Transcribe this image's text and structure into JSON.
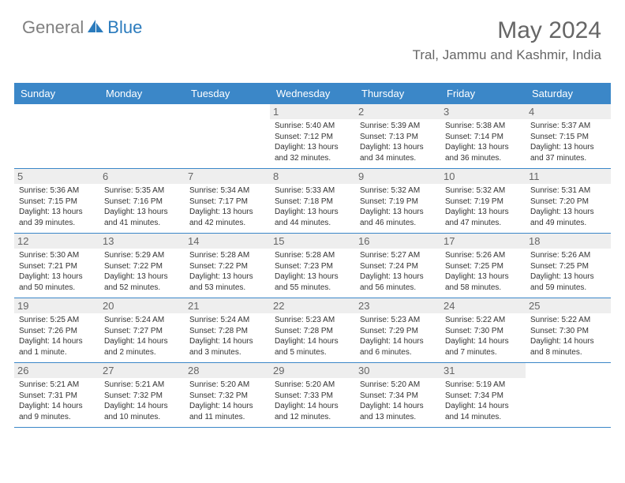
{
  "logo": {
    "text1": "General",
    "text2": "Blue"
  },
  "title": "May 2024",
  "location": "Tral, Jammu and Kashmir, India",
  "colors": {
    "header_bg": "#3b87c8",
    "header_fg": "#ffffff",
    "daynum_bg": "#eeeeee",
    "daynum_fg": "#666666",
    "border": "#3b87c8",
    "logo_gray": "#808080",
    "logo_blue": "#2b7bbd"
  },
  "day_labels": [
    "Sunday",
    "Monday",
    "Tuesday",
    "Wednesday",
    "Thursday",
    "Friday",
    "Saturday"
  ],
  "weeks": [
    [
      null,
      null,
      null,
      {
        "num": "1",
        "sunrise": "5:40 AM",
        "sunset": "7:12 PM",
        "daylight": "13 hours and 32 minutes."
      },
      {
        "num": "2",
        "sunrise": "5:39 AM",
        "sunset": "7:13 PM",
        "daylight": "13 hours and 34 minutes."
      },
      {
        "num": "3",
        "sunrise": "5:38 AM",
        "sunset": "7:14 PM",
        "daylight": "13 hours and 36 minutes."
      },
      {
        "num": "4",
        "sunrise": "5:37 AM",
        "sunset": "7:15 PM",
        "daylight": "13 hours and 37 minutes."
      }
    ],
    [
      {
        "num": "5",
        "sunrise": "5:36 AM",
        "sunset": "7:15 PM",
        "daylight": "13 hours and 39 minutes."
      },
      {
        "num": "6",
        "sunrise": "5:35 AM",
        "sunset": "7:16 PM",
        "daylight": "13 hours and 41 minutes."
      },
      {
        "num": "7",
        "sunrise": "5:34 AM",
        "sunset": "7:17 PM",
        "daylight": "13 hours and 42 minutes."
      },
      {
        "num": "8",
        "sunrise": "5:33 AM",
        "sunset": "7:18 PM",
        "daylight": "13 hours and 44 minutes."
      },
      {
        "num": "9",
        "sunrise": "5:32 AM",
        "sunset": "7:19 PM",
        "daylight": "13 hours and 46 minutes."
      },
      {
        "num": "10",
        "sunrise": "5:32 AM",
        "sunset": "7:19 PM",
        "daylight": "13 hours and 47 minutes."
      },
      {
        "num": "11",
        "sunrise": "5:31 AM",
        "sunset": "7:20 PM",
        "daylight": "13 hours and 49 minutes."
      }
    ],
    [
      {
        "num": "12",
        "sunrise": "5:30 AM",
        "sunset": "7:21 PM",
        "daylight": "13 hours and 50 minutes."
      },
      {
        "num": "13",
        "sunrise": "5:29 AM",
        "sunset": "7:22 PM",
        "daylight": "13 hours and 52 minutes."
      },
      {
        "num": "14",
        "sunrise": "5:28 AM",
        "sunset": "7:22 PM",
        "daylight": "13 hours and 53 minutes."
      },
      {
        "num": "15",
        "sunrise": "5:28 AM",
        "sunset": "7:23 PM",
        "daylight": "13 hours and 55 minutes."
      },
      {
        "num": "16",
        "sunrise": "5:27 AM",
        "sunset": "7:24 PM",
        "daylight": "13 hours and 56 minutes."
      },
      {
        "num": "17",
        "sunrise": "5:26 AM",
        "sunset": "7:25 PM",
        "daylight": "13 hours and 58 minutes."
      },
      {
        "num": "18",
        "sunrise": "5:26 AM",
        "sunset": "7:25 PM",
        "daylight": "13 hours and 59 minutes."
      }
    ],
    [
      {
        "num": "19",
        "sunrise": "5:25 AM",
        "sunset": "7:26 PM",
        "daylight": "14 hours and 1 minute."
      },
      {
        "num": "20",
        "sunrise": "5:24 AM",
        "sunset": "7:27 PM",
        "daylight": "14 hours and 2 minutes."
      },
      {
        "num": "21",
        "sunrise": "5:24 AM",
        "sunset": "7:28 PM",
        "daylight": "14 hours and 3 minutes."
      },
      {
        "num": "22",
        "sunrise": "5:23 AM",
        "sunset": "7:28 PM",
        "daylight": "14 hours and 5 minutes."
      },
      {
        "num": "23",
        "sunrise": "5:23 AM",
        "sunset": "7:29 PM",
        "daylight": "14 hours and 6 minutes."
      },
      {
        "num": "24",
        "sunrise": "5:22 AM",
        "sunset": "7:30 PM",
        "daylight": "14 hours and 7 minutes."
      },
      {
        "num": "25",
        "sunrise": "5:22 AM",
        "sunset": "7:30 PM",
        "daylight": "14 hours and 8 minutes."
      }
    ],
    [
      {
        "num": "26",
        "sunrise": "5:21 AM",
        "sunset": "7:31 PM",
        "daylight": "14 hours and 9 minutes."
      },
      {
        "num": "27",
        "sunrise": "5:21 AM",
        "sunset": "7:32 PM",
        "daylight": "14 hours and 10 minutes."
      },
      {
        "num": "28",
        "sunrise": "5:20 AM",
        "sunset": "7:32 PM",
        "daylight": "14 hours and 11 minutes."
      },
      {
        "num": "29",
        "sunrise": "5:20 AM",
        "sunset": "7:33 PM",
        "daylight": "14 hours and 12 minutes."
      },
      {
        "num": "30",
        "sunrise": "5:20 AM",
        "sunset": "7:34 PM",
        "daylight": "14 hours and 13 minutes."
      },
      {
        "num": "31",
        "sunrise": "5:19 AM",
        "sunset": "7:34 PM",
        "daylight": "14 hours and 14 minutes."
      },
      null
    ]
  ],
  "labels": {
    "sunrise": "Sunrise:",
    "sunset": "Sunset:",
    "daylight": "Daylight:"
  }
}
